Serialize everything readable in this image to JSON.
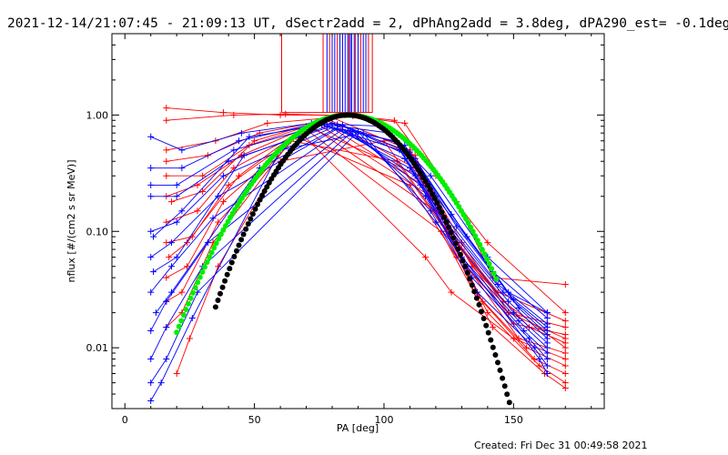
{
  "chart_data": {
    "type": "line",
    "title": "2021-12-14/21:07:45 - 21:09:13 UT, dSectr2add = 2, dPhAng2add = 3.8deg, dPA290_est= -0.1deg",
    "xlabel": "PA [deg]",
    "ylabel": "nflux [#/(cm2 s sr MeV)]",
    "footer": "Created: Fri Dec 31 00:49:58 2021",
    "xlim": [
      -5,
      185
    ],
    "ylim": [
      0.003,
      5.0
    ],
    "yscale": "log",
    "x_ticks": [
      0,
      50,
      100,
      150
    ],
    "x_tick_labels": [
      "0",
      "50",
      "100",
      "150"
    ],
    "y_ticks": [
      0.01,
      0.1,
      1.0
    ],
    "y_tick_labels": [
      "0.01",
      "0.10",
      "1.00"
    ],
    "grid": false,
    "colors": {
      "red_series": "#ff0000",
      "blue_series": "#0000ff",
      "green_fit": "#00ee00",
      "black_fit": "#000000",
      "axes": "#000000"
    },
    "marker": "plus",
    "vertical_lines": [
      {
        "x": 60.5,
        "color": "#ff0000"
      },
      {
        "x": 76.5,
        "color": "#ff0000"
      },
      {
        "x": 78.0,
        "color": "#0000ff"
      },
      {
        "x": 79.0,
        "color": "#ff0000"
      },
      {
        "x": 80.0,
        "color": "#0000ff"
      },
      {
        "x": 81.0,
        "color": "#0000ff"
      },
      {
        "x": 82.0,
        "color": "#ff0000"
      },
      {
        "x": 83.0,
        "color": "#0000ff"
      },
      {
        "x": 84.0,
        "color": "#0000ff"
      },
      {
        "x": 85.0,
        "color": "#0000ff"
      },
      {
        "x": 86.0,
        "color": "#0000ff"
      },
      {
        "x": 86.5,
        "color": "#ff0000"
      },
      {
        "x": 87.0,
        "color": "#0000ff"
      },
      {
        "x": 87.5,
        "color": "#0000ff"
      },
      {
        "x": 88.5,
        "color": "#0000ff"
      },
      {
        "x": 89.0,
        "color": "#ff0000"
      },
      {
        "x": 90.0,
        "color": "#0000ff"
      },
      {
        "x": 91.0,
        "color": "#ff0000"
      },
      {
        "x": 92.0,
        "color": "#0000ff"
      },
      {
        "x": 93.0,
        "color": "#0000ff"
      },
      {
        "x": 94.0,
        "color": "#ff0000"
      },
      {
        "x": 95.5,
        "color": "#ff0000"
      }
    ],
    "vertical_line_y_range": [
      1.05,
      5.0
    ],
    "fits": [
      {
        "color": "#00ee00",
        "center": 86.0,
        "width": 22.5,
        "peak": 1.0,
        "x_range": [
          20,
          144
        ]
      },
      {
        "color": "#000000",
        "center": 86.0,
        "width": 18.5,
        "peak": 1.0,
        "x_range": [
          35,
          160
        ]
      }
    ],
    "series": [
      {
        "color": "#ff0000",
        "points": [
          [
            16,
            1.15
          ],
          [
            38,
            1.05
          ],
          [
            60,
            1.0
          ],
          [
            85,
            1.0
          ],
          [
            108,
            0.85
          ],
          [
            128,
            0.18
          ],
          [
            142,
            0.04
          ],
          [
            170,
            0.035
          ]
        ]
      },
      {
        "color": "#ff0000",
        "points": [
          [
            16,
            0.5
          ],
          [
            35,
            0.6
          ],
          [
            55,
            0.85
          ],
          [
            80,
            0.95
          ],
          [
            110,
            0.5
          ],
          [
            130,
            0.08
          ],
          [
            148,
            0.02
          ],
          [
            170,
            0.015
          ]
        ]
      },
      {
        "color": "#ff0000",
        "points": [
          [
            16,
            0.4
          ],
          [
            32,
            0.45
          ],
          [
            52,
            0.7
          ],
          [
            78,
            0.9
          ],
          [
            112,
            0.35
          ],
          [
            132,
            0.05
          ],
          [
            152,
            0.012
          ],
          [
            170,
            0.009
          ]
        ]
      },
      {
        "color": "#ff0000",
        "points": [
          [
            16,
            0.3
          ],
          [
            30,
            0.3
          ],
          [
            48,
            0.55
          ],
          [
            76,
            0.88
          ],
          [
            115,
            0.25
          ],
          [
            135,
            0.03
          ],
          [
            155,
            0.01
          ],
          [
            170,
            0.007
          ]
        ]
      },
      {
        "color": "#ff0000",
        "points": [
          [
            16,
            0.2
          ],
          [
            28,
            0.25
          ],
          [
            45,
            0.45
          ],
          [
            74,
            0.85
          ],
          [
            118,
            0.2
          ],
          [
            138,
            0.025
          ],
          [
            158,
            0.008
          ],
          [
            170,
            0.006
          ]
        ]
      },
      {
        "color": "#ff0000",
        "points": [
          [
            16,
            0.12
          ],
          [
            28,
            0.15
          ],
          [
            42,
            0.35
          ],
          [
            72,
            0.8
          ],
          [
            120,
            0.15
          ],
          [
            140,
            0.02
          ],
          [
            160,
            0.007
          ],
          [
            170,
            0.005
          ]
        ]
      },
      {
        "color": "#ff0000",
        "points": [
          [
            16,
            0.08
          ],
          [
            26,
            0.09
          ],
          [
            40,
            0.25
          ],
          [
            70,
            0.75
          ],
          [
            122,
            0.1
          ],
          [
            142,
            0.015
          ],
          [
            162,
            0.006
          ],
          [
            170,
            0.0045
          ]
        ]
      },
      {
        "color": "#ff0000",
        "points": [
          [
            16,
            0.04
          ],
          [
            24,
            0.05
          ],
          [
            38,
            0.18
          ],
          [
            68,
            0.7
          ],
          [
            116,
            0.06
          ],
          [
            126,
            0.03
          ],
          [
            150,
            0.012
          ],
          [
            170,
            0.008
          ]
        ]
      },
      {
        "color": "#ff0000",
        "points": [
          [
            16,
            0.025
          ],
          [
            22,
            0.03
          ],
          [
            36,
            0.12
          ],
          [
            66,
            0.65
          ],
          [
            110,
            0.25
          ],
          [
            128,
            0.06
          ],
          [
            148,
            0.02
          ],
          [
            170,
            0.012
          ]
        ]
      },
      {
        "color": "#ff0000",
        "points": [
          [
            16,
            0.015
          ],
          [
            22,
            0.02
          ],
          [
            34,
            0.08
          ],
          [
            64,
            0.6
          ],
          [
            105,
            0.4
          ],
          [
            124,
            0.1
          ],
          [
            146,
            0.025
          ],
          [
            170,
            0.01
          ]
        ]
      },
      {
        "color": "#ff0000",
        "points": [
          [
            16,
            0.9
          ],
          [
            42,
            1.0
          ],
          [
            62,
            1.02
          ],
          [
            88,
            0.98
          ],
          [
            104,
            0.9
          ],
          [
            120,
            0.3
          ],
          [
            140,
            0.08
          ],
          [
            170,
            0.02
          ]
        ]
      },
      {
        "color": "#ff0000",
        "points": [
          [
            17,
            0.06
          ],
          [
            24,
            0.08
          ],
          [
            44,
            0.3
          ],
          [
            70,
            0.8
          ],
          [
            114,
            0.3
          ],
          [
            134,
            0.05
          ],
          [
            156,
            0.015
          ],
          [
            170,
            0.011
          ]
        ]
      },
      {
        "color": "#ff0000",
        "points": [
          [
            18,
            0.18
          ],
          [
            30,
            0.22
          ],
          [
            50,
            0.6
          ],
          [
            78,
            0.92
          ],
          [
            112,
            0.45
          ],
          [
            130,
            0.07
          ],
          [
            150,
            0.016
          ],
          [
            170,
            0.013
          ]
        ]
      },
      {
        "color": "#ff0000",
        "points": [
          [
            20,
            0.006
          ],
          [
            25,
            0.012
          ],
          [
            36,
            0.05
          ],
          [
            60,
            0.4
          ],
          [
            100,
            0.6
          ],
          [
            122,
            0.12
          ],
          [
            144,
            0.03
          ],
          [
            170,
            0.017
          ]
        ]
      },
      {
        "color": "#0000ff",
        "points": [
          [
            10,
            0.65
          ],
          [
            22,
            0.5
          ],
          [
            45,
            0.7
          ],
          [
            72,
            0.85
          ],
          [
            100,
            0.8
          ],
          [
            118,
            0.3
          ],
          [
            140,
            0.06
          ],
          [
            163,
            0.02
          ]
        ]
      },
      {
        "color": "#0000ff",
        "points": [
          [
            10,
            0.35
          ],
          [
            22,
            0.35
          ],
          [
            44,
            0.6
          ],
          [
            74,
            0.85
          ],
          [
            102,
            0.7
          ],
          [
            120,
            0.2
          ],
          [
            142,
            0.045
          ],
          [
            163,
            0.018
          ]
        ]
      },
      {
        "color": "#0000ff",
        "points": [
          [
            10,
            0.25
          ],
          [
            20,
            0.25
          ],
          [
            42,
            0.5
          ],
          [
            76,
            0.82
          ],
          [
            104,
            0.6
          ],
          [
            122,
            0.15
          ],
          [
            144,
            0.035
          ],
          [
            163,
            0.016
          ]
        ]
      },
      {
        "color": "#0000ff",
        "points": [
          [
            10,
            0.2
          ],
          [
            20,
            0.2
          ],
          [
            40,
            0.4
          ],
          [
            78,
            0.8
          ],
          [
            106,
            0.5
          ],
          [
            124,
            0.12
          ],
          [
            146,
            0.03
          ],
          [
            163,
            0.014
          ]
        ]
      },
      {
        "color": "#0000ff",
        "points": [
          [
            10,
            0.1
          ],
          [
            20,
            0.12
          ],
          [
            38,
            0.3
          ],
          [
            80,
            0.78
          ],
          [
            108,
            0.42
          ],
          [
            126,
            0.1
          ],
          [
            148,
            0.025
          ],
          [
            163,
            0.012
          ]
        ]
      },
      {
        "color": "#0000ff",
        "points": [
          [
            10,
            0.06
          ],
          [
            18,
            0.08
          ],
          [
            36,
            0.2
          ],
          [
            82,
            0.76
          ],
          [
            110,
            0.35
          ],
          [
            128,
            0.08
          ],
          [
            150,
            0.02
          ],
          [
            163,
            0.011
          ]
        ]
      },
      {
        "color": "#0000ff",
        "points": [
          [
            10,
            0.03
          ],
          [
            18,
            0.05
          ],
          [
            34,
            0.13
          ],
          [
            84,
            0.75
          ],
          [
            112,
            0.3
          ],
          [
            130,
            0.06
          ],
          [
            152,
            0.017
          ],
          [
            163,
            0.01
          ]
        ]
      },
      {
        "color": "#0000ff",
        "points": [
          [
            10,
            0.014
          ],
          [
            16,
            0.025
          ],
          [
            32,
            0.08
          ],
          [
            86,
            0.74
          ],
          [
            114,
            0.25
          ],
          [
            132,
            0.05
          ],
          [
            154,
            0.014
          ],
          [
            163,
            0.009
          ]
        ]
      },
      {
        "color": "#0000ff",
        "points": [
          [
            10,
            0.008
          ],
          [
            16,
            0.015
          ],
          [
            30,
            0.05
          ],
          [
            88,
            0.73
          ],
          [
            116,
            0.2
          ],
          [
            134,
            0.04
          ],
          [
            156,
            0.012
          ],
          [
            163,
            0.008
          ]
        ]
      },
      {
        "color": "#0000ff",
        "points": [
          [
            10,
            0.005
          ],
          [
            16,
            0.008
          ],
          [
            28,
            0.03
          ],
          [
            90,
            0.72
          ],
          [
            118,
            0.15
          ],
          [
            136,
            0.03
          ],
          [
            158,
            0.01
          ],
          [
            163,
            0.007
          ]
        ]
      },
      {
        "color": "#0000ff",
        "points": [
          [
            10,
            0.0035
          ],
          [
            14,
            0.005
          ],
          [
            26,
            0.018
          ],
          [
            60,
            0.5
          ],
          [
            92,
            0.7
          ],
          [
            120,
            0.12
          ],
          [
            160,
            0.008
          ],
          [
            163,
            0.006
          ]
        ]
      },
      {
        "color": "#0000ff",
        "points": [
          [
            11,
            0.09
          ],
          [
            22,
            0.15
          ],
          [
            48,
            0.65
          ],
          [
            80,
            0.85
          ],
          [
            108,
            0.55
          ],
          [
            126,
            0.14
          ],
          [
            148,
            0.03
          ],
          [
            163,
            0.02
          ]
        ]
      },
      {
        "color": "#0000ff",
        "points": [
          [
            11,
            0.045
          ],
          [
            20,
            0.06
          ],
          [
            46,
            0.45
          ],
          [
            82,
            0.83
          ],
          [
            110,
            0.48
          ],
          [
            128,
            0.11
          ],
          [
            150,
            0.026
          ],
          [
            163,
            0.015
          ]
        ]
      },
      {
        "color": "#0000ff",
        "points": [
          [
            12,
            0.02
          ],
          [
            18,
            0.03
          ],
          [
            52,
            0.35
          ],
          [
            84,
            0.82
          ],
          [
            112,
            0.42
          ],
          [
            132,
            0.09
          ],
          [
            152,
            0.022
          ],
          [
            163,
            0.013
          ]
        ]
      }
    ]
  }
}
